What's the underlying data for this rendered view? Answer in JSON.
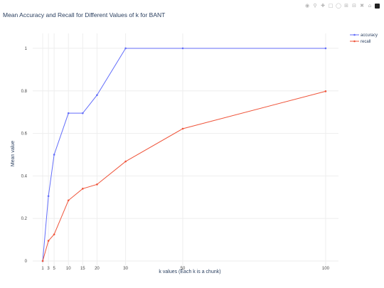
{
  "modebar": {
    "icons": [
      "camera-icon",
      "zoom-icon",
      "pan-icon",
      "box-select-icon",
      "lasso-icon",
      "zoom-in-icon",
      "zoom-out-icon",
      "autoscale-icon",
      "home-icon",
      "plotly-logo-icon"
    ]
  },
  "chart_data": {
    "type": "line",
    "title": "Mean Accuracy and Recall for Different Values of k for BANT",
    "xlabel": "k values (Each k is a chunk)",
    "ylabel": "Mean value",
    "x": [
      1,
      3,
      5,
      10,
      15,
      20,
      30,
      50,
      100
    ],
    "x_ticks": [
      1,
      3,
      5,
      10,
      15,
      20,
      30,
      50,
      100
    ],
    "y_ticks": [
      0,
      0.2,
      0.4,
      0.6,
      0.8,
      1
    ],
    "xlim": [
      -2.5,
      104.5
    ],
    "ylim": [
      -0.02,
      1.07
    ],
    "grid": true,
    "legend_position": "top-right",
    "series": [
      {
        "name": "accuracy",
        "color": "#636efa",
        "values": [
          0,
          0.305,
          0.5,
          0.695,
          0.695,
          0.78,
          1.0,
          1.0,
          1.0
        ]
      },
      {
        "name": "recall",
        "color": "#ef553b",
        "values": [
          0,
          0.095,
          0.125,
          0.285,
          0.34,
          0.36,
          0.468,
          0.622,
          0.798
        ]
      }
    ]
  }
}
